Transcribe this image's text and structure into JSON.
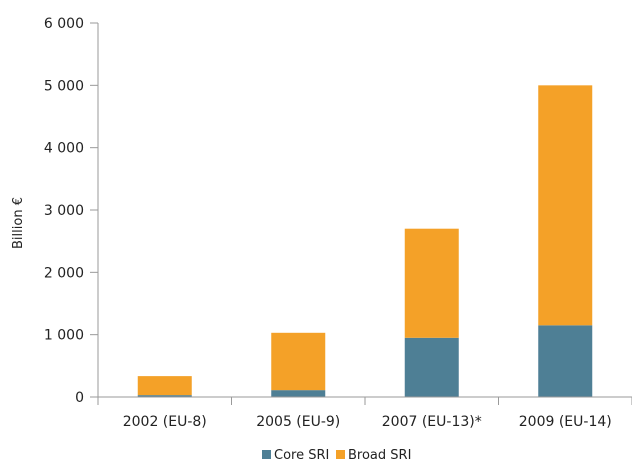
{
  "chart_data": {
    "type": "bar",
    "stacked": true,
    "categories": [
      "2002 (EU-8)",
      "2005 (EU-9)",
      "2007 (EU-13)*",
      "2009 (EU-14)"
    ],
    "series": [
      {
        "name": "Core SRI",
        "color": "#4e7f95",
        "values": [
          30,
          110,
          950,
          1150
        ]
      },
      {
        "name": "Broad SRI",
        "color": "#f4a128",
        "values": [
          305,
          920,
          1750,
          3850
        ]
      }
    ],
    "ylabel": "Billion €",
    "ylim": [
      0,
      6000
    ],
    "yticks": [
      0,
      1000,
      2000,
      3000,
      4000,
      5000,
      6000
    ],
    "ytick_labels": [
      "0",
      "1 000",
      "2 000",
      "3 000",
      "4 000",
      "5 000",
      "6 000"
    ],
    "grid": false,
    "legend_position": "bottom"
  }
}
